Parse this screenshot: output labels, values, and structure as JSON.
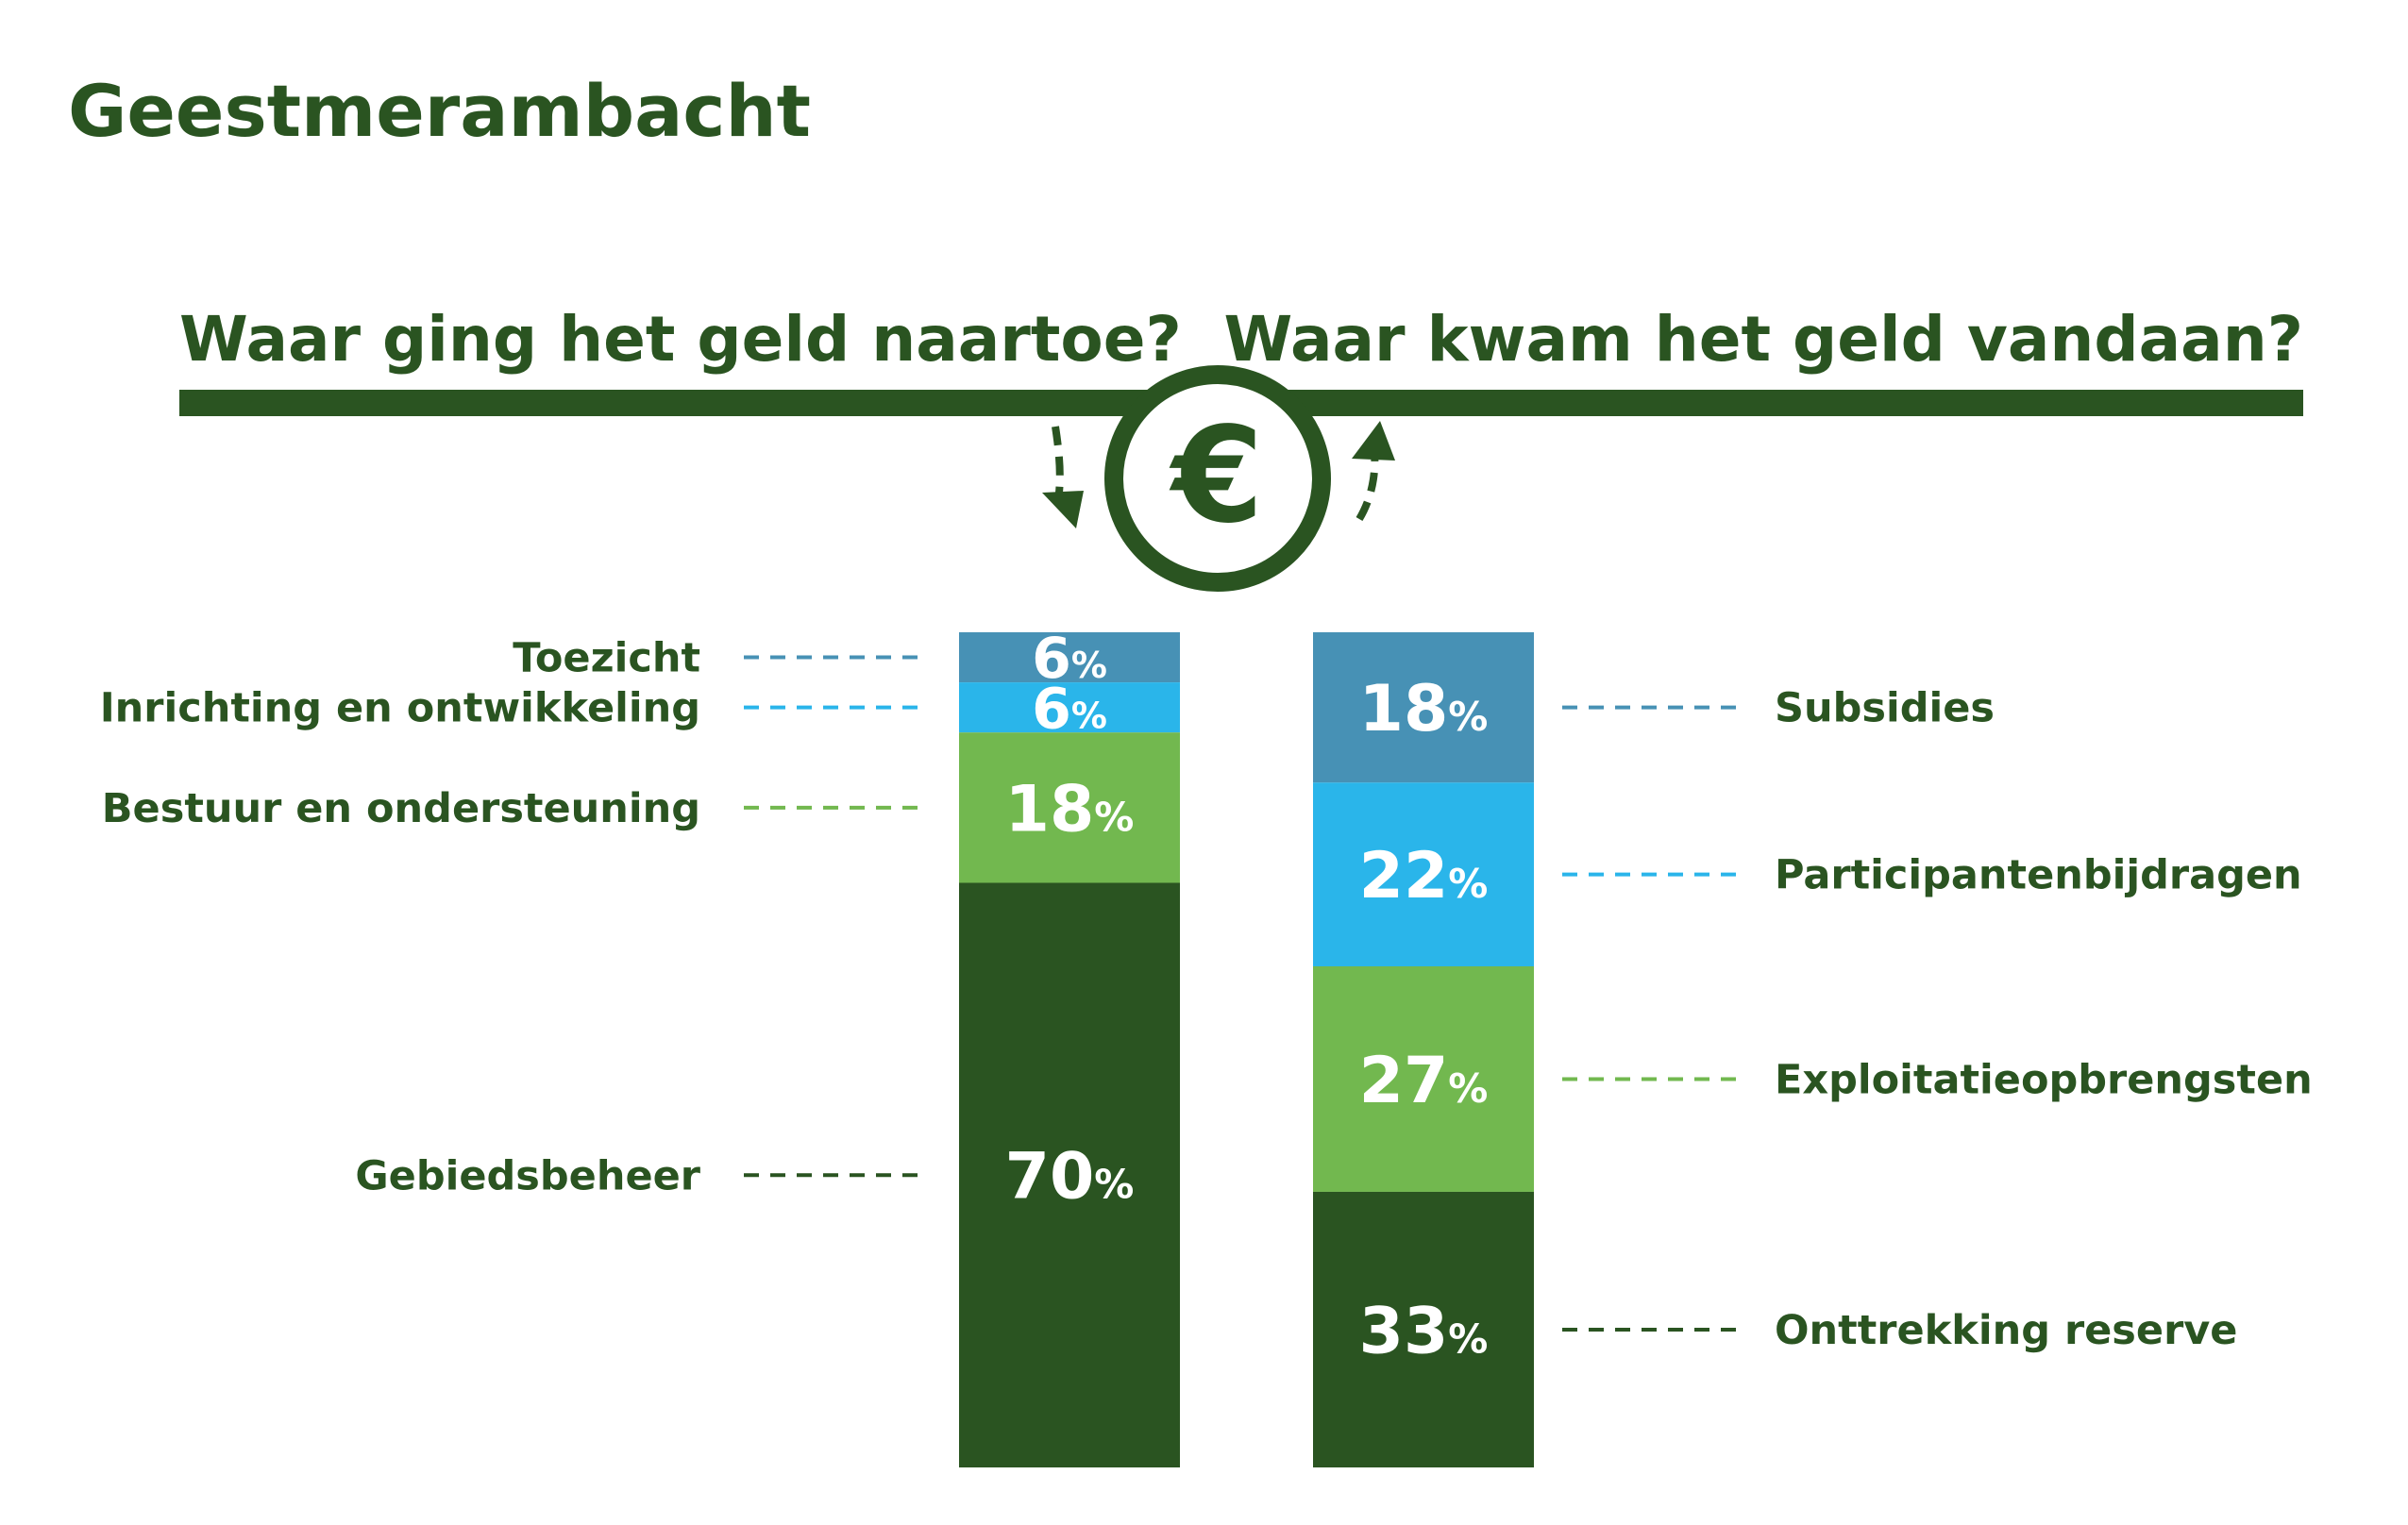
{
  "page": {
    "title": "Geestmerambacht",
    "heading_left": "Waar ging het geld naartoe?",
    "heading_right": "Waar kwam het geld vandaan?",
    "currency_symbol": "€"
  },
  "colors": {
    "dark_green": "#2a5421",
    "light_green": "#72b84f",
    "light_blue": "#2ab5ea",
    "steel_blue": "#4791b5"
  },
  "chart_data": [
    {
      "type": "bar",
      "stacked": true,
      "title": "Waar ging het geld naartoe?",
      "unit": "%",
      "segments": [
        {
          "label": "Toezicht",
          "value": 6,
          "color": "#4791b5"
        },
        {
          "label": "Inrichting en ontwikkeling",
          "value": 6,
          "color": "#2ab5ea"
        },
        {
          "label": "Bestuur en ondersteuning",
          "value": 18,
          "color": "#72b84f"
        },
        {
          "label": "Gebiedsbeheer",
          "value": 70,
          "color": "#2a5421"
        }
      ]
    },
    {
      "type": "bar",
      "stacked": true,
      "title": "Waar kwam het geld vandaan?",
      "unit": "%",
      "segments": [
        {
          "label": "Subsidies",
          "value": 18,
          "color": "#4791b5"
        },
        {
          "label": "Participantenbijdragen",
          "value": 22,
          "color": "#2ab5ea"
        },
        {
          "label": "Exploitatieopbrengsten",
          "value": 27,
          "color": "#72b84f"
        },
        {
          "label": "Onttrekking reserve",
          "value": 33,
          "color": "#2a5421"
        }
      ]
    }
  ]
}
